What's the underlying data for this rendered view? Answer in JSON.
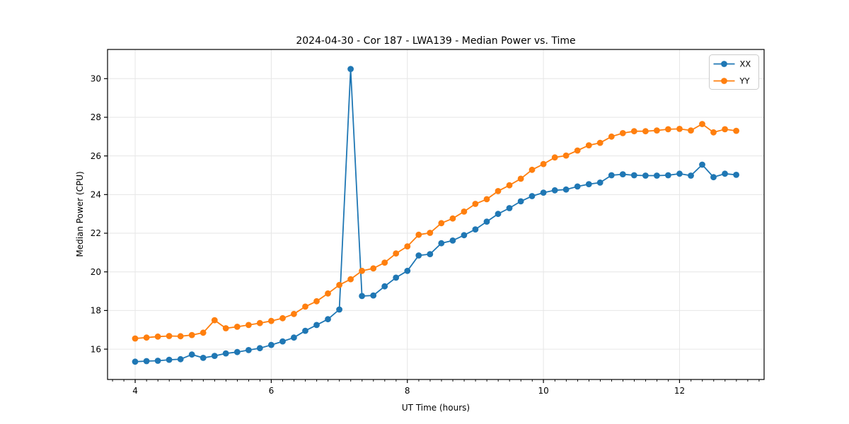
{
  "chart": {
    "title": "2024-04-30 - Cor 187 - LWA139 - Median Power vs. Time",
    "xlabel": "UT Time (hours)",
    "ylabel": "Median Power (CPU)"
  },
  "chart_data": {
    "type": "line",
    "title": "2024-04-30 - Cor 187 - LWA139 - Median Power vs. Time",
    "xlabel": "UT Time (hours)",
    "ylabel": "Median Power (CPU)",
    "x": [
      4.0,
      4.167,
      4.333,
      4.5,
      4.667,
      4.833,
      5.0,
      5.167,
      5.333,
      5.5,
      5.667,
      5.833,
      6.0,
      6.167,
      6.333,
      6.5,
      6.667,
      6.833,
      7.0,
      7.167,
      7.333,
      7.5,
      7.667,
      7.833,
      8.0,
      8.167,
      8.333,
      8.5,
      8.667,
      8.833,
      9.0,
      9.167,
      9.333,
      9.5,
      9.667,
      9.833,
      10.0,
      10.167,
      10.333,
      10.5,
      10.667,
      10.833,
      11.0,
      11.167,
      11.333,
      11.5,
      11.667,
      11.833,
      12.0,
      12.167,
      12.333,
      12.5,
      12.667,
      12.833
    ],
    "series": [
      {
        "name": "XX",
        "color": "#1f77b4",
        "values": [
          15.35,
          15.38,
          15.4,
          15.45,
          15.48,
          15.72,
          15.55,
          15.65,
          15.78,
          15.85,
          15.95,
          16.05,
          16.22,
          16.4,
          16.6,
          16.95,
          17.25,
          17.55,
          18.05,
          30.5,
          18.75,
          18.78,
          19.25,
          19.7,
          20.05,
          20.85,
          20.92,
          21.48,
          21.62,
          21.9,
          22.2,
          22.6,
          23.0,
          23.3,
          23.65,
          23.92,
          24.1,
          24.22,
          24.26,
          24.42,
          24.54,
          24.62,
          25.0,
          25.05,
          25.0,
          24.98,
          24.98,
          25.0,
          25.08,
          24.98,
          25.55,
          24.9,
          25.08,
          25.02
        ]
      },
      {
        "name": "YY",
        "color": "#ff7f0e",
        "values": [
          16.55,
          16.6,
          16.65,
          16.68,
          16.67,
          16.73,
          16.85,
          17.5,
          17.08,
          17.16,
          17.25,
          17.35,
          17.46,
          17.6,
          17.82,
          18.2,
          18.48,
          18.88,
          19.32,
          19.62,
          20.05,
          20.18,
          20.48,
          20.95,
          21.32,
          21.92,
          22.02,
          22.52,
          22.76,
          23.12,
          23.52,
          23.76,
          24.18,
          24.48,
          24.82,
          25.28,
          25.58,
          25.92,
          26.02,
          26.28,
          26.55,
          26.68,
          27.0,
          27.18,
          27.28,
          27.28,
          27.32,
          27.38,
          27.4,
          27.32,
          27.65,
          27.22,
          27.38,
          27.3
        ]
      }
    ],
    "xlim": [
      3.594,
      13.243
    ],
    "ylim": [
      14.43,
      31.51
    ],
    "xticks": [
      4,
      6,
      8,
      10,
      12
    ],
    "yticks": [
      16,
      18,
      20,
      22,
      24,
      26,
      28,
      30
    ],
    "x_minor_step": 0.1667,
    "grid": true,
    "legend": [
      "XX",
      "YY"
    ],
    "legend_position": "upper right",
    "colors": {
      "grid": "#e6e6e6",
      "spine": "#000000",
      "text": "#000000",
      "legend_border": "#cccccc"
    }
  }
}
